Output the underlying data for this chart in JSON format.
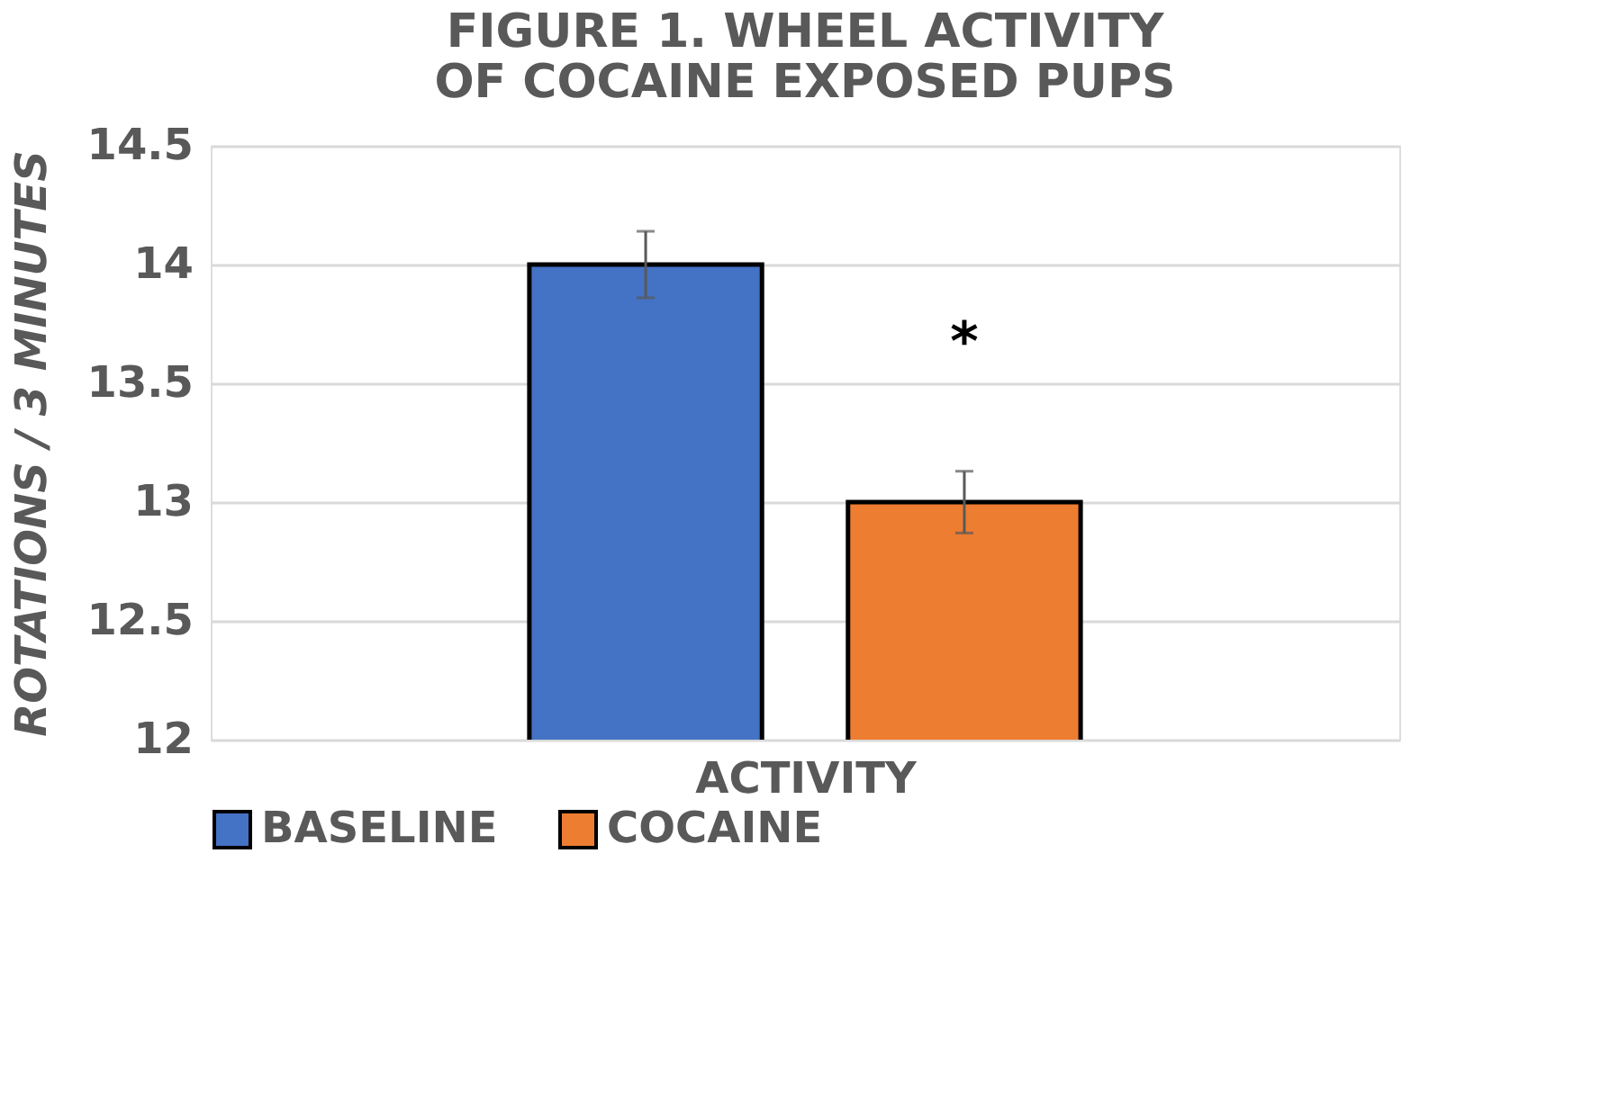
{
  "chart_data": {
    "type": "bar",
    "title": [
      "FIGURE 1.  WHEEL ACTIVITY",
      "OF COCAINE EXPOSED PUPS"
    ],
    "xlabel": "ACTIVITY",
    "ylabel": "ROTATIONS / 3 MINUTES",
    "categories": [
      null
    ],
    "series": [
      {
        "name": "BASELINE",
        "color": "#4472c4",
        "values": [
          14
        ],
        "errors": [
          0.14
        ]
      },
      {
        "name": "COCAINE",
        "color": "#ed7d31",
        "values": [
          13
        ],
        "errors": [
          0.13
        ]
      }
    ],
    "ylim": [
      12,
      14.5
    ],
    "yticks": [
      12,
      12.5,
      13,
      13.5,
      14,
      14.5
    ],
    "grid": "y",
    "legend": "bottom",
    "annotations": [
      "*"
    ]
  }
}
